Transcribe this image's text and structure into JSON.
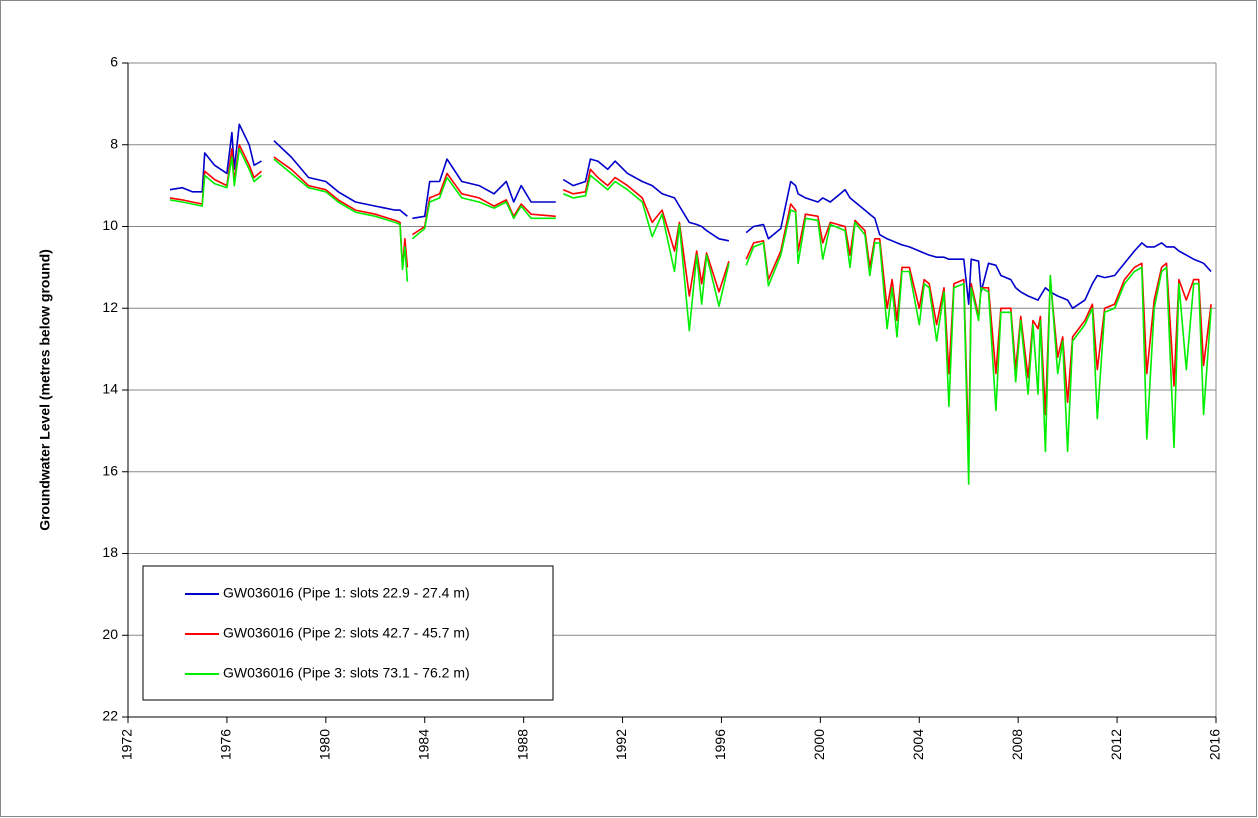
{
  "chart_data": {
    "type": "line",
    "ylabel": "Groundwater Level (metres below ground)",
    "xlim": [
      1972,
      2016
    ],
    "xticks": [
      1972,
      1976,
      1980,
      1984,
      1988,
      1992,
      1996,
      2000,
      2004,
      2008,
      2012,
      2016
    ],
    "ylim": [
      6,
      22
    ],
    "yticks": [
      6,
      8,
      10,
      12,
      14,
      16,
      18,
      20,
      22
    ],
    "y_inverted": true,
    "grid": true,
    "legend": "lower left",
    "x": [
      1973.7,
      1974.2,
      1974.6,
      1975.0,
      1975.1,
      1975.5,
      1976.0,
      1976.2,
      1976.3,
      1976.5,
      1976.9,
      1977.1,
      1977.4,
      1977.6,
      1977.9,
      1978.6,
      1979.3,
      1980.0,
      1980.5,
      1981.2,
      1982.0,
      1982.8,
      1983.0,
      1983.1,
      1983.2,
      1983.3,
      1983.4,
      1983.5,
      1984.0,
      1984.2,
      1984.6,
      1984.9,
      1985.5,
      1986.2,
      1986.8,
      1987.3,
      1987.6,
      1987.9,
      1988.3,
      1989.3,
      1989.5,
      1989.6,
      1990.0,
      1990.5,
      1990.7,
      1991.0,
      1991.4,
      1991.7,
      1992.2,
      1992.8,
      1993.2,
      1993.6,
      1994.1,
      1994.3,
      1994.7,
      1995.0,
      1995.2,
      1995.4,
      1995.9,
      1996.3,
      1996.6,
      1997.0,
      1997.3,
      1997.7,
      1997.9,
      1998.4,
      1998.8,
      1999.0,
      1999.1,
      1999.4,
      1999.9,
      2000.1,
      2000.4,
      2001.0,
      2001.2,
      2001.4,
      2001.8,
      2002.0,
      2002.2,
      2002.4,
      2002.7,
      2002.9,
      2003.1,
      2003.3,
      2003.6,
      2004.0,
      2004.2,
      2004.4,
      2004.7,
      2005.0,
      2005.2,
      2005.4,
      2005.8,
      2006.0,
      2006.1,
      2006.4,
      2006.5,
      2006.8,
      2007.1,
      2007.3,
      2007.7,
      2007.9,
      2008.1,
      2008.4,
      2008.6,
      2008.8,
      2008.9,
      2009.1,
      2009.3,
      2009.6,
      2009.8,
      2010.0,
      2010.2,
      2010.7,
      2011.0,
      2011.2,
      2011.5,
      2011.9,
      2012.3,
      2012.7,
      2013.0,
      2013.2,
      2013.5,
      2013.8,
      2014.0,
      2014.3,
      2014.5,
      2014.8,
      2015.1,
      2015.3,
      2015.5,
      2015.8
    ],
    "series": [
      {
        "name": "GW036016 (Pipe 1: slots 22.9 - 27.4 m)",
        "color": "#0000cc",
        "values": [
          9.1,
          9.05,
          9.15,
          9.15,
          8.2,
          8.5,
          8.7,
          7.7,
          8.6,
          7.5,
          8.0,
          8.5,
          8.4,
          null,
          7.9,
          8.3,
          8.8,
          8.9,
          9.15,
          9.4,
          9.5,
          9.6,
          9.6,
          9.65,
          9.7,
          9.75,
          null,
          9.8,
          9.75,
          8.9,
          8.9,
          8.35,
          8.9,
          9.0,
          9.2,
          8.9,
          9.4,
          9.0,
          9.4,
          9.4,
          null,
          8.85,
          9.0,
          8.9,
          8.35,
          8.4,
          8.6,
          8.4,
          8.7,
          8.9,
          9.0,
          9.2,
          9.3,
          9.5,
          9.9,
          9.95,
          10.0,
          10.1,
          10.3,
          10.35,
          null,
          10.15,
          10.0,
          9.95,
          10.3,
          10.05,
          8.9,
          9.0,
          9.2,
          9.3,
          9.4,
          9.3,
          9.4,
          9.1,
          9.3,
          9.4,
          9.6,
          9.7,
          9.8,
          10.2,
          10.3,
          10.35,
          10.4,
          10.45,
          10.5,
          10.6,
          10.65,
          10.7,
          10.75,
          10.75,
          10.8,
          10.8,
          10.8,
          11.9,
          10.8,
          10.85,
          11.6,
          10.9,
          10.95,
          11.2,
          11.3,
          11.5,
          11.6,
          11.7,
          11.75,
          11.8,
          11.7,
          11.5,
          11.6,
          11.7,
          11.75,
          11.8,
          12.0,
          11.8,
          11.4,
          11.2,
          11.25,
          11.2,
          10.9,
          10.6,
          10.4,
          10.5,
          10.5,
          10.4,
          10.5,
          10.5,
          10.6,
          10.7,
          10.8,
          10.85,
          10.9,
          11.1
        ]
      },
      {
        "name": "GW036016 (Pipe 2: slots 42.7 - 45.7 m)",
        "color": "#ff0000",
        "values": [
          9.3,
          9.35,
          9.4,
          9.45,
          8.65,
          8.85,
          9.0,
          8.1,
          8.9,
          8.0,
          8.5,
          8.8,
          8.65,
          null,
          8.3,
          8.6,
          9.0,
          9.1,
          9.35,
          9.6,
          9.7,
          9.85,
          9.9,
          11.0,
          10.3,
          11.0,
          null,
          10.2,
          10.0,
          9.3,
          9.2,
          8.7,
          9.2,
          9.3,
          9.5,
          9.35,
          9.75,
          9.45,
          9.7,
          9.75,
          null,
          9.1,
          9.2,
          9.15,
          8.6,
          8.8,
          9.0,
          8.8,
          9.0,
          9.3,
          9.9,
          9.6,
          10.6,
          9.9,
          11.7,
          10.6,
          11.4,
          10.65,
          11.6,
          10.85,
          null,
          10.8,
          10.4,
          10.35,
          11.3,
          10.6,
          9.45,
          9.6,
          10.6,
          9.7,
          9.75,
          10.4,
          9.9,
          10.0,
          10.7,
          9.85,
          10.1,
          11.0,
          10.3,
          10.3,
          12.0,
          11.3,
          12.3,
          11.0,
          11.0,
          12.0,
          11.3,
          11.4,
          12.4,
          11.5,
          13.6,
          11.4,
          11.3,
          15.6,
          11.4,
          12.2,
          11.5,
          11.5,
          13.6,
          12.0,
          12.0,
          13.5,
          12.2,
          13.7,
          12.3,
          12.5,
          12.2,
          14.6,
          11.3,
          13.2,
          12.7,
          14.3,
          12.7,
          12.3,
          11.9,
          13.5,
          12.0,
          11.9,
          11.3,
          11.0,
          10.9,
          13.6,
          11.8,
          11.0,
          10.9,
          13.9,
          11.3,
          11.8,
          11.3,
          11.3,
          13.4,
          11.9
        ]
      },
      {
        "name": "GW036016 (Pipe 3: slots 73.1 - 76.2 m)",
        "color": "#00ee00",
        "values": [
          9.35,
          9.4,
          9.45,
          9.5,
          8.75,
          8.95,
          9.05,
          8.3,
          9.0,
          8.1,
          8.6,
          8.9,
          8.75,
          null,
          8.35,
          8.7,
          9.05,
          9.15,
          9.4,
          9.65,
          9.75,
          9.9,
          9.95,
          11.05,
          10.5,
          11.35,
          null,
          10.3,
          10.05,
          9.4,
          9.3,
          8.8,
          9.3,
          9.4,
          9.55,
          9.4,
          9.8,
          9.5,
          9.8,
          9.8,
          null,
          9.2,
          9.3,
          9.25,
          8.75,
          8.9,
          9.1,
          8.9,
          9.1,
          9.4,
          10.25,
          9.7,
          11.1,
          9.95,
          12.55,
          10.7,
          11.9,
          10.7,
          11.95,
          10.9,
          null,
          10.95,
          10.5,
          10.4,
          11.45,
          10.7,
          9.6,
          9.65,
          10.9,
          9.8,
          9.85,
          10.8,
          9.95,
          10.1,
          11.0,
          9.9,
          10.2,
          11.2,
          10.4,
          10.4,
          12.5,
          11.5,
          12.7,
          11.1,
          11.1,
          12.4,
          11.4,
          11.5,
          12.8,
          11.6,
          14.4,
          11.5,
          11.4,
          16.3,
          11.5,
          12.3,
          11.5,
          11.6,
          14.5,
          12.1,
          12.1,
          13.8,
          12.3,
          14.1,
          12.4,
          14.1,
          12.3,
          15.5,
          11.2,
          13.6,
          12.8,
          15.5,
          12.8,
          12.4,
          12.0,
          14.7,
          12.1,
          12.0,
          11.4,
          11.1,
          11.0,
          15.2,
          12.0,
          11.1,
          11.0,
          15.4,
          11.4,
          13.5,
          11.4,
          11.4,
          14.6,
          12.0
        ]
      }
    ]
  }
}
